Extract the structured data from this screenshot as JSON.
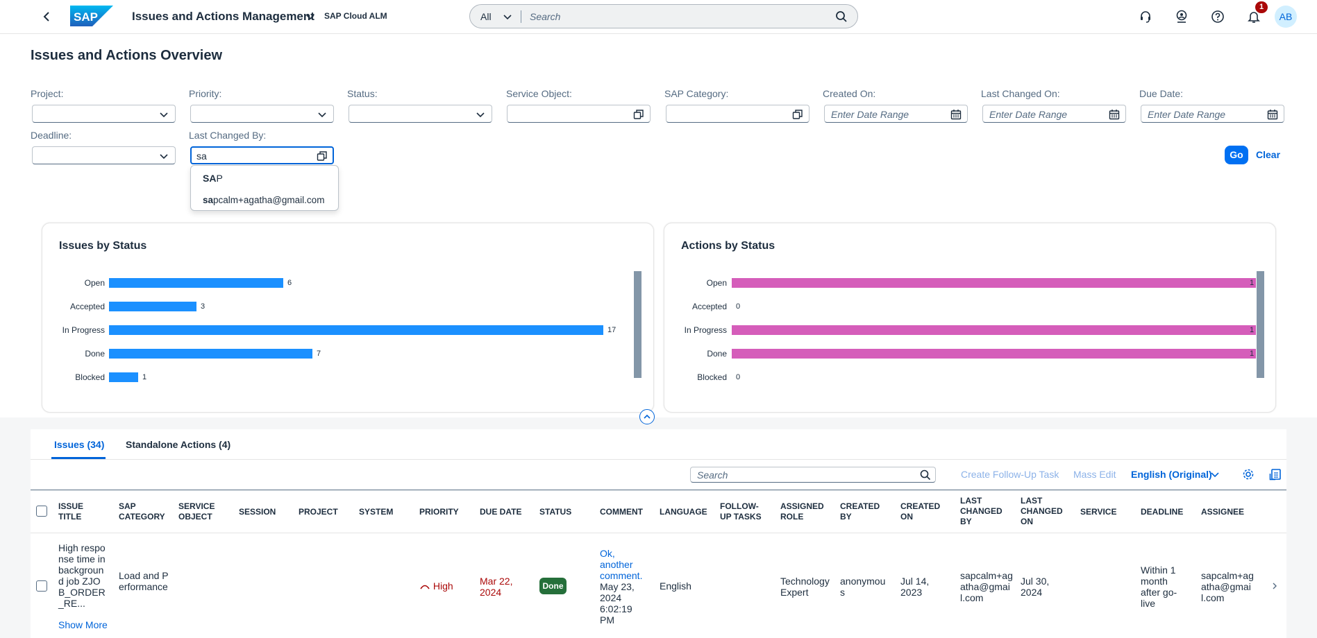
{
  "shell": {
    "app_title": "Issues and Actions Management",
    "product_name": "SAP Cloud ALM",
    "search_scope": "All",
    "search_placeholder": "Search",
    "notification_count": "1",
    "user_initials": "AB"
  },
  "page": {
    "title": "Issues and Actions Overview"
  },
  "filters": {
    "project_label": "Project:",
    "priority_label": "Priority:",
    "status_label": "Status:",
    "service_object_label": "Service Object:",
    "sap_category_label": "SAP Category:",
    "created_on_label": "Created On:",
    "last_changed_on_label": "Last Changed On:",
    "due_date_label": "Due Date:",
    "deadline_label": "Deadline:",
    "last_changed_by_label": "Last Changed By:",
    "date_placeholder": "Enter Date Range",
    "last_changed_by_value": "sa",
    "go_label": "Go",
    "clear_label": "Clear",
    "suggestions": [
      {
        "bold": "SA",
        "rest": "P"
      },
      {
        "bold": "sa",
        "rest": "pcalm+agatha@gmail.com"
      }
    ]
  },
  "cards": {
    "issues_title": "Issues by Status",
    "actions_title": "Actions by Status"
  },
  "chart_data": [
    {
      "type": "bar",
      "title": "Issues by Status",
      "orientation": "horizontal",
      "categories": [
        "Open",
        "Accepted",
        "In Progress",
        "Done",
        "Blocked"
      ],
      "values": [
        6,
        3,
        17,
        7,
        1
      ],
      "color": "#1b90ff"
    },
    {
      "type": "bar",
      "title": "Actions by Status",
      "orientation": "horizontal",
      "categories": [
        "Open",
        "Accepted",
        "In Progress",
        "Done",
        "Blocked"
      ],
      "values": [
        1,
        0,
        1,
        1,
        0
      ],
      "color": "#d55dba"
    }
  ],
  "tabs": {
    "issues": "Issues (34)",
    "actions": "Standalone Actions (4)"
  },
  "toolbar": {
    "search_placeholder": "Search",
    "create_followup": "Create Follow-Up Task",
    "mass_edit": "Mass Edit",
    "language": "English (Original)"
  },
  "table": {
    "columns": {
      "issue_title": "Issue Title",
      "sap_category": "SAP Category",
      "service_object": "Service Object",
      "session": "Session",
      "project": "Project",
      "system": "System",
      "priority": "Priority",
      "due_date": "Due Date",
      "status": "Status",
      "comment": "Comment",
      "language": "Language",
      "followup": "Follow-Up Tasks",
      "assigned_role": "Assigned Role",
      "created_by": "Created By",
      "created_on": "Created On",
      "last_changed_by": "Last Changed By",
      "last_changed_on": "Last Changed On",
      "service": "Service",
      "deadline": "Deadline",
      "assignee": "Assignee"
    },
    "row": {
      "issue_title": "High response time in background job ZJOB_ORDER_RE...",
      "show_more": "Show More",
      "sap_category": "Load and Performance",
      "priority": "High",
      "due_date": "Mar 22, 2024",
      "status": "Done",
      "comment_link": "Ok, another comment.",
      "comment_date": "May 23, 2024 6:02:19 PM",
      "language": "English",
      "assigned_role": "Technology Expert",
      "created_by": "anonymous",
      "created_on": "Jul 14, 2023",
      "last_changed_by": "sapcalm+agatha@gmail.com",
      "last_changed_on": "Jul 30, 2024",
      "deadline": "Within 1 month after go-live",
      "assignee": "sapcalm+agatha@gmail.com"
    }
  }
}
